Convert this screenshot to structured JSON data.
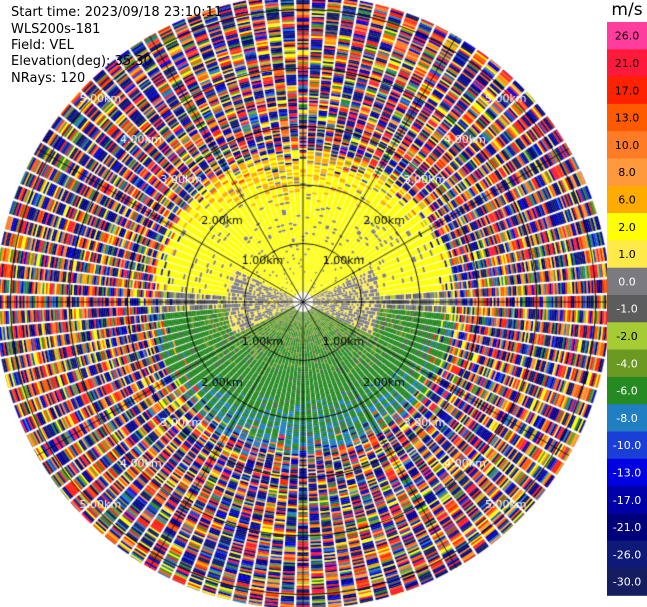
{
  "header": {
    "start_time": "Start time: 2023/09/18 23:10:11",
    "instrument": "WLS200s-181",
    "field": "Field: VEL",
    "elevation": "Elevation(deg): 35.30",
    "nrays": "NRays: 120"
  },
  "colorbar": {
    "unit": "m/s",
    "levels": [
      {
        "label": "26.0",
        "color": "#ff3d9e"
      },
      {
        "label": "21.0",
        "color": "#ff1a3c"
      },
      {
        "label": "17.0",
        "color": "#ff2200"
      },
      {
        "label": "13.0",
        "color": "#ff5a00"
      },
      {
        "label": "10.0",
        "color": "#ff7b25"
      },
      {
        "label": "8.0",
        "color": "#ff9a3c"
      },
      {
        "label": "6.0",
        "color": "#ffab00"
      },
      {
        "label": "2.0",
        "color": "#ffff00"
      },
      {
        "label": "1.0",
        "color": "#ffea4a"
      },
      {
        "label": "0.0",
        "color": "#7a7a80"
      },
      {
        "label": "-1.0",
        "color": "#5c5c5c"
      },
      {
        "label": "-2.0",
        "color": "#a6cc33"
      },
      {
        "label": "-4.0",
        "color": "#6b9a23"
      },
      {
        "label": "-6.0",
        "color": "#268a22"
      },
      {
        "label": "-8.0",
        "color": "#1f7fc0"
      },
      {
        "label": "-10.0",
        "color": "#1a3fd8"
      },
      {
        "label": "-13.0",
        "color": "#0000e0"
      },
      {
        "label": "-17.0",
        "color": "#0000a8"
      },
      {
        "label": "-21.0",
        "color": "#00007a"
      },
      {
        "label": "-26.0",
        "color": "#0f1a78"
      },
      {
        "label": "-30.0",
        "color": "#151c60"
      }
    ]
  },
  "chart_data": {
    "type": "heatmap",
    "projection": "polar-ppi",
    "title": "",
    "rays": 120,
    "range_rings_km": [
      1,
      2,
      3,
      4,
      5
    ],
    "ring_labels": [
      "1.00km",
      "2.00km",
      "3.00km",
      "4.00km",
      "5.00km"
    ],
    "spoke_interval_deg": 30,
    "clean_range_km": 2.6,
    "outer_range_km": 5.5,
    "velocity_regimes": [
      {
        "sector": "north / upper",
        "range_km": "0.5-2.6",
        "velocity_ms": "2.0 to 6.0"
      },
      {
        "sector": "east-west band near center",
        "range_km": "0-1.4",
        "velocity_ms": "0.0 to 1.0"
      },
      {
        "sector": "south / lower",
        "range_km": "0.3-2.6",
        "velocity_ms": "-2.0 to -6.0"
      },
      {
        "sector": "all directions",
        "range_km": "beyond 2.6",
        "velocity_ms": "noise, -30.0 to 26.0"
      }
    ]
  }
}
